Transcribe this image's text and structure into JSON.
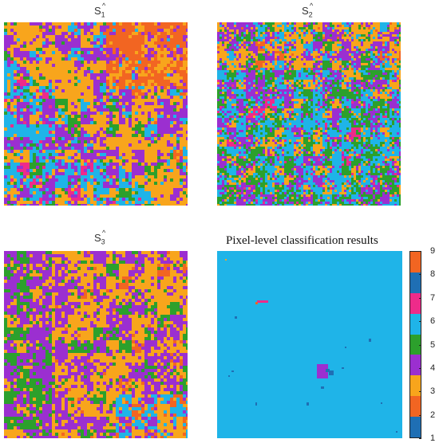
{
  "panels": [
    {
      "id": "s1",
      "label": "S",
      "sub": "1",
      "hat": "^"
    },
    {
      "id": "s2",
      "label": "S",
      "sub": "2",
      "hat": "^"
    },
    {
      "id": "s3",
      "label": "S",
      "sub": "3",
      "hat": "^"
    }
  ],
  "classification_title": "Pixel-level classification results",
  "colorbar": {
    "ticks": [
      "9",
      "8",
      "7",
      "6",
      "5",
      "4",
      "3",
      "2",
      "1"
    ],
    "colors": {
      "1": "#1f6fb4",
      "2": "#f26522",
      "3": "#f8a51c",
      "4": "#9b2fd0",
      "5": "#2ca02c",
      "6": "#1fb4e8",
      "7": "#ee2b8a",
      "8": "#1f6fb4",
      "9": "#f26522"
    }
  }
}
